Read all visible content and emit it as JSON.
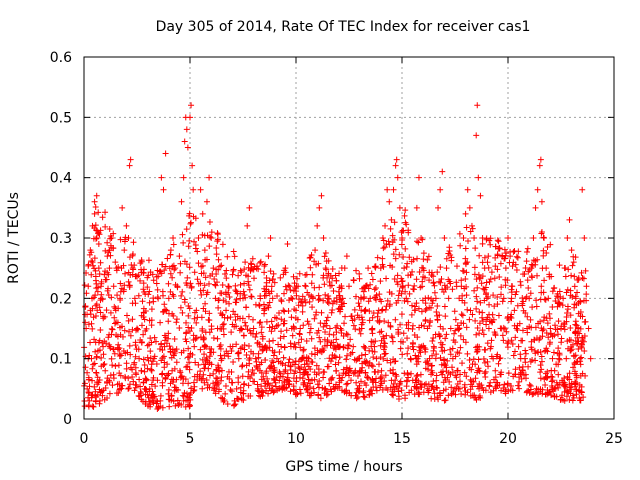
{
  "chart_data": {
    "type": "scatter",
    "title": "Day 305 of 2014, Rate Of TEC Index for receiver cas1",
    "xlabel": "GPS time / hours",
    "ylabel": "ROTI / TECUs",
    "xlim": [
      0,
      25
    ],
    "ylim": [
      0,
      0.6
    ],
    "xticks": [
      0,
      5,
      10,
      15,
      20,
      25
    ],
    "yticks": [
      0,
      0.1,
      0.2,
      0.3,
      0.4,
      0.5,
      0.6
    ],
    "xtick_labels": [
      "0",
      "5",
      "10",
      "15",
      "20",
      "25"
    ],
    "ytick_labels": [
      "0",
      "0.1",
      "0.2",
      "0.3",
      "0.4",
      "0.5",
      "0.6"
    ],
    "grid": true,
    "marker": "+",
    "color": "#ff0000",
    "series": [
      {
        "name": "ROTI",
        "points": [
          [
            0.1,
            0.15
          ],
          [
            0.2,
            0.22
          ],
          [
            0.3,
            0.28
          ],
          [
            0.4,
            0.32
          ],
          [
            0.5,
            0.36
          ],
          [
            0.6,
            0.3
          ],
          [
            0.7,
            0.25
          ],
          [
            0.8,
            0.2
          ],
          [
            0.9,
            0.12
          ],
          [
            1.0,
            0.08
          ],
          [
            0.15,
            0.05
          ],
          [
            0.25,
            0.03
          ],
          [
            0.35,
            0.04
          ],
          [
            0.45,
            0.02
          ],
          [
            0.55,
            0.03
          ],
          [
            0.65,
            0.04
          ],
          [
            0.75,
            0.03
          ],
          [
            0.2,
            0.1
          ],
          [
            0.3,
            0.18
          ],
          [
            0.4,
            0.26
          ],
          [
            0.5,
            0.34
          ],
          [
            0.6,
            0.37
          ],
          [
            0.7,
            0.29
          ],
          [
            0.8,
            0.22
          ],
          [
            0.9,
            0.17
          ],
          [
            1.1,
            0.27
          ],
          [
            1.2,
            0.25
          ],
          [
            1.3,
            0.3
          ],
          [
            1.4,
            0.22
          ],
          [
            1.5,
            0.18
          ],
          [
            1.6,
            0.16
          ],
          [
            1.7,
            0.2
          ],
          [
            1.8,
            0.35
          ],
          [
            1.9,
            0.28
          ],
          [
            2.0,
            0.32
          ],
          [
            2.1,
            0.3
          ],
          [
            2.2,
            0.43
          ],
          [
            2.15,
            0.42
          ],
          [
            2.3,
            0.25
          ],
          [
            2.4,
            0.2
          ],
          [
            2.5,
            0.15
          ],
          [
            2.6,
            0.1
          ],
          [
            2.7,
            0.08
          ],
          [
            2.8,
            0.06
          ],
          [
            2.9,
            0.05
          ],
          [
            3.0,
            0.04
          ],
          [
            3.1,
            0.05
          ],
          [
            3.2,
            0.08
          ],
          [
            3.3,
            0.1
          ],
          [
            3.4,
            0.03
          ],
          [
            3.5,
            0.02
          ],
          [
            3.6,
            0.03
          ],
          [
            3.7,
            0.06
          ],
          [
            3.8,
            0.12
          ],
          [
            3.9,
            0.18
          ],
          [
            3.65,
            0.4
          ],
          [
            3.75,
            0.38
          ],
          [
            3.85,
            0.44
          ],
          [
            4.0,
            0.2
          ],
          [
            4.1,
            0.28
          ],
          [
            4.2,
            0.3
          ],
          [
            4.3,
            0.25
          ],
          [
            4.4,
            0.22
          ],
          [
            4.5,
            0.27
          ],
          [
            4.6,
            0.36
          ],
          [
            4.7,
            0.4
          ],
          [
            4.75,
            0.46
          ],
          [
            4.8,
            0.5
          ],
          [
            4.85,
            0.48
          ],
          [
            4.9,
            0.45
          ],
          [
            5.0,
            0.5
          ],
          [
            5.05,
            0.52
          ],
          [
            5.1,
            0.42
          ],
          [
            5.15,
            0.38
          ],
          [
            4.7,
            0.03
          ],
          [
            4.8,
            0.02
          ],
          [
            4.9,
            0.03
          ],
          [
            5.0,
            0.04
          ],
          [
            5.2,
            0.12
          ],
          [
            5.3,
            0.18
          ],
          [
            5.4,
            0.3
          ],
          [
            5.5,
            0.38
          ],
          [
            5.6,
            0.34
          ],
          [
            5.7,
            0.28
          ],
          [
            5.8,
            0.36
          ],
          [
            5.9,
            0.4
          ],
          [
            6.0,
            0.3
          ],
          [
            6.1,
            0.25
          ],
          [
            6.2,
            0.2
          ],
          [
            6.3,
            0.15
          ],
          [
            6.4,
            0.12
          ],
          [
            6.5,
            0.1
          ],
          [
            6.6,
            0.14
          ],
          [
            6.7,
            0.18
          ],
          [
            6.8,
            0.22
          ],
          [
            6.9,
            0.12
          ],
          [
            7.0,
            0.06
          ],
          [
            7.1,
            0.03
          ],
          [
            7.2,
            0.05
          ],
          [
            7.3,
            0.1
          ],
          [
            7.4,
            0.15
          ],
          [
            7.5,
            0.2
          ],
          [
            7.6,
            0.26
          ],
          [
            7.7,
            0.32
          ],
          [
            7.8,
            0.35
          ],
          [
            7.9,
            0.25
          ],
          [
            8.0,
            0.15
          ],
          [
            8.1,
            0.1
          ],
          [
            8.2,
            0.05
          ],
          [
            8.3,
            0.08
          ],
          [
            8.4,
            0.12
          ],
          [
            8.5,
            0.18
          ],
          [
            8.6,
            0.22
          ],
          [
            8.7,
            0.27
          ],
          [
            8.8,
            0.3
          ],
          [
            8.9,
            0.2
          ],
          [
            9.0,
            0.15
          ],
          [
            9.1,
            0.1
          ],
          [
            9.2,
            0.05
          ],
          [
            9.3,
            0.12
          ],
          [
            9.4,
            0.18
          ],
          [
            9.5,
            0.25
          ],
          [
            9.6,
            0.29
          ],
          [
            9.7,
            0.22
          ],
          [
            9.8,
            0.15
          ],
          [
            9.9,
            0.12
          ],
          [
            10.0,
            0.18
          ],
          [
            10.1,
            0.22
          ],
          [
            10.2,
            0.15
          ],
          [
            10.3,
            0.1
          ],
          [
            10.4,
            0.06
          ],
          [
            10.5,
            0.05
          ],
          [
            10.6,
            0.1
          ],
          [
            10.7,
            0.15
          ],
          [
            10.8,
            0.2
          ],
          [
            10.9,
            0.28
          ],
          [
            11.0,
            0.32
          ],
          [
            11.1,
            0.35
          ],
          [
            11.2,
            0.37
          ],
          [
            11.3,
            0.3
          ],
          [
            11.4,
            0.25
          ],
          [
            11.5,
            0.2
          ],
          [
            11.6,
            0.15
          ],
          [
            11.7,
            0.1
          ],
          [
            11.8,
            0.05
          ],
          [
            11.9,
            0.08
          ],
          [
            12.0,
            0.12
          ],
          [
            12.1,
            0.15
          ],
          [
            12.2,
            0.2
          ],
          [
            12.3,
            0.25
          ],
          [
            12.4,
            0.27
          ],
          [
            12.5,
            0.22
          ],
          [
            12.6,
            0.17
          ],
          [
            12.7,
            0.12
          ],
          [
            12.8,
            0.08
          ],
          [
            12.9,
            0.05
          ],
          [
            13.0,
            0.1
          ],
          [
            13.1,
            0.15
          ],
          [
            13.2,
            0.2
          ],
          [
            13.3,
            0.22
          ],
          [
            13.4,
            0.25
          ],
          [
            13.5,
            0.2
          ],
          [
            13.6,
            0.15
          ],
          [
            13.7,
            0.12
          ],
          [
            13.8,
            0.1
          ],
          [
            13.9,
            0.18
          ],
          [
            14.0,
            0.25
          ],
          [
            14.1,
            0.3
          ],
          [
            14.2,
            0.32
          ],
          [
            14.3,
            0.38
          ],
          [
            14.4,
            0.36
          ],
          [
            14.5,
            0.33
          ],
          [
            14.6,
            0.38
          ],
          [
            14.7,
            0.42
          ],
          [
            14.75,
            0.43
          ],
          [
            14.8,
            0.4
          ],
          [
            14.9,
            0.35
          ],
          [
            15.0,
            0.3
          ],
          [
            15.1,
            0.25
          ],
          [
            15.2,
            0.2
          ],
          [
            15.3,
            0.15
          ],
          [
            15.4,
            0.1
          ],
          [
            15.5,
            0.12
          ],
          [
            15.6,
            0.18
          ],
          [
            15.7,
            0.35
          ],
          [
            15.8,
            0.4
          ],
          [
            15.9,
            0.3
          ],
          [
            16.0,
            0.25
          ],
          [
            16.1,
            0.2
          ],
          [
            16.2,
            0.15
          ],
          [
            16.3,
            0.1
          ],
          [
            16.4,
            0.08
          ],
          [
            16.5,
            0.12
          ],
          [
            16.6,
            0.2
          ],
          [
            16.7,
            0.35
          ],
          [
            16.8,
            0.38
          ],
          [
            16.9,
            0.41
          ],
          [
            17.0,
            0.3
          ],
          [
            17.1,
            0.25
          ],
          [
            17.2,
            0.2
          ],
          [
            17.3,
            0.15
          ],
          [
            17.4,
            0.1
          ],
          [
            17.5,
            0.05
          ],
          [
            17.6,
            0.08
          ],
          [
            17.7,
            0.15
          ],
          [
            17.8,
            0.22
          ],
          [
            17.9,
            0.3
          ],
          [
            18.0,
            0.34
          ],
          [
            18.1,
            0.38
          ],
          [
            18.2,
            0.35
          ],
          [
            18.3,
            0.32
          ],
          [
            18.4,
            0.3
          ],
          [
            18.5,
            0.47
          ],
          [
            18.55,
            0.52
          ],
          [
            18.6,
            0.4
          ],
          [
            18.7,
            0.37
          ],
          [
            18.8,
            0.3
          ],
          [
            18.9,
            0.25
          ],
          [
            19.0,
            0.2
          ],
          [
            19.1,
            0.15
          ],
          [
            19.2,
            0.12
          ],
          [
            19.3,
            0.1
          ],
          [
            19.4,
            0.08
          ],
          [
            19.5,
            0.06
          ],
          [
            19.6,
            0.1
          ],
          [
            19.7,
            0.15
          ],
          [
            19.8,
            0.2
          ],
          [
            19.9,
            0.25
          ],
          [
            20.0,
            0.3
          ],
          [
            20.1,
            0.27
          ],
          [
            20.2,
            0.22
          ],
          [
            20.3,
            0.18
          ],
          [
            20.4,
            0.15
          ],
          [
            20.5,
            0.12
          ],
          [
            20.6,
            0.1
          ],
          [
            20.7,
            0.08
          ],
          [
            20.8,
            0.1
          ],
          [
            20.9,
            0.15
          ],
          [
            21.0,
            0.2
          ],
          [
            21.1,
            0.25
          ],
          [
            21.2,
            0.3
          ],
          [
            21.3,
            0.35
          ],
          [
            21.4,
            0.38
          ],
          [
            21.5,
            0.42
          ],
          [
            21.55,
            0.43
          ],
          [
            21.6,
            0.36
          ],
          [
            21.7,
            0.3
          ],
          [
            21.8,
            0.25
          ],
          [
            21.9,
            0.2
          ],
          [
            22.0,
            0.15
          ],
          [
            22.1,
            0.1
          ],
          [
            22.2,
            0.08
          ],
          [
            22.3,
            0.06
          ],
          [
            22.4,
            0.1
          ],
          [
            22.5,
            0.15
          ],
          [
            22.6,
            0.2
          ],
          [
            22.7,
            0.25
          ],
          [
            22.8,
            0.3
          ],
          [
            22.9,
            0.33
          ],
          [
            23.0,
            0.28
          ],
          [
            23.1,
            0.26
          ],
          [
            23.2,
            0.2
          ],
          [
            23.3,
            0.15
          ],
          [
            23.4,
            0.1
          ],
          [
            23.5,
            0.38
          ],
          [
            23.6,
            0.3
          ],
          [
            23.7,
            0.22
          ],
          [
            23.8,
            0.15
          ],
          [
            23.9,
            0.1
          ]
        ]
      }
    ],
    "density": {
      "grid_hours": [
        0,
        0.5,
        1,
        1.5,
        2,
        2.5,
        3,
        3.5,
        4,
        4.5,
        5,
        5.5,
        6,
        6.5,
        7,
        7.5,
        8,
        8.5,
        9,
        9.5,
        10,
        10.5,
        11,
        11.5,
        12,
        12.5,
        13,
        13.5,
        14,
        14.5,
        15,
        15.5,
        16,
        16.5,
        17,
        17.5,
        18,
        18.5,
        19,
        19.5,
        20,
        20.5,
        21,
        21.5,
        22,
        22.5,
        23,
        23.5
      ],
      "upper_envelope": [
        0.22,
        0.36,
        0.35,
        0.3,
        0.32,
        0.28,
        0.27,
        0.26,
        0.28,
        0.3,
        0.35,
        0.32,
        0.33,
        0.3,
        0.28,
        0.26,
        0.27,
        0.26,
        0.25,
        0.25,
        0.24,
        0.26,
        0.3,
        0.27,
        0.26,
        0.25,
        0.25,
        0.27,
        0.28,
        0.34,
        0.38,
        0.3,
        0.3,
        0.25,
        0.28,
        0.3,
        0.34,
        0.32,
        0.3,
        0.3,
        0.28,
        0.28,
        0.3,
        0.32,
        0.3,
        0.25,
        0.28,
        0.25
      ],
      "lower_envelope": [
        0.02,
        0.02,
        0.03,
        0.04,
        0.05,
        0.04,
        0.02,
        0.01,
        0.02,
        0.02,
        0.02,
        0.05,
        0.05,
        0.03,
        0.02,
        0.03,
        0.03,
        0.04,
        0.04,
        0.05,
        0.04,
        0.04,
        0.03,
        0.04,
        0.05,
        0.04,
        0.03,
        0.04,
        0.05,
        0.04,
        0.03,
        0.04,
        0.04,
        0.03,
        0.03,
        0.04,
        0.04,
        0.03,
        0.04,
        0.05,
        0.04,
        0.05,
        0.04,
        0.04,
        0.04,
        0.03,
        0.03,
        0.03
      ]
    }
  }
}
